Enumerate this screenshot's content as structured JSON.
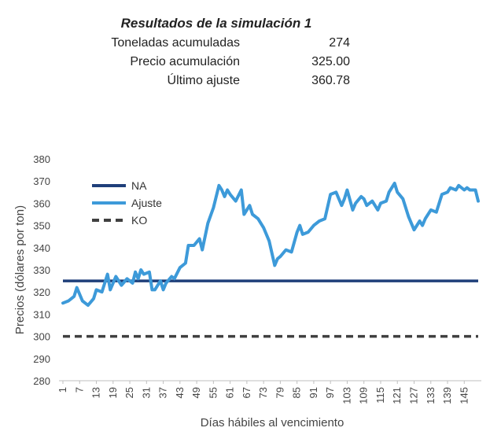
{
  "summary": {
    "title": "Resultados de la simulación 1",
    "rows": [
      {
        "label": "Toneladas acumuladas",
        "value": "274"
      },
      {
        "label": "Precio acumulación",
        "value": "325.00"
      },
      {
        "label": "Último ajuste",
        "value": "360.78"
      }
    ]
  },
  "chart_data": {
    "type": "line",
    "title": "",
    "xlabel": "Días hábiles al vencimiento",
    "ylabel": "Precios (dólares por ton)",
    "ylim": [
      280,
      380
    ],
    "yticks": [
      280,
      290,
      300,
      310,
      320,
      330,
      340,
      350,
      360,
      370,
      380
    ],
    "xticks": [
      1,
      7,
      13,
      19,
      25,
      31,
      37,
      43,
      49,
      55,
      61,
      67,
      73,
      79,
      85,
      91,
      97,
      103,
      109,
      115,
      121,
      127,
      133,
      139,
      145
    ],
    "xlim": [
      1,
      150
    ],
    "grid": false,
    "legend_position": "top-left",
    "colors": {
      "NA": "#1f3f7a",
      "Ajuste": "#3d9ad9",
      "KO": "#404040"
    },
    "series": [
      {
        "name": "NA",
        "style": "solid",
        "values": [
          325,
          325
        ]
      },
      {
        "name": "Ajuste",
        "style": "solid",
        "x": [
          1,
          3,
          5,
          6,
          8,
          10,
          12,
          13,
          15,
          17,
          18,
          20,
          22,
          24,
          26,
          27,
          28,
          29,
          30,
          32,
          33,
          34,
          36,
          37,
          38,
          40,
          41,
          43,
          45,
          46,
          48,
          50,
          51,
          53,
          55,
          57,
          58,
          59,
          60,
          61,
          63,
          65,
          66,
          68,
          69,
          71,
          73,
          75,
          77,
          78,
          79,
          81,
          83,
          85,
          86,
          87,
          89,
          91,
          93,
          95,
          97,
          99,
          101,
          102,
          103,
          105,
          106,
          108,
          109,
          110,
          112,
          114,
          115,
          117,
          118,
          120,
          121,
          123,
          125,
          127,
          129,
          130,
          131,
          133,
          135,
          137,
          139,
          140,
          142,
          143,
          145,
          146,
          147,
          149,
          150
        ],
        "values": [
          315,
          316,
          318,
          322,
          316,
          314,
          317,
          321,
          320,
          328,
          321,
          327,
          323,
          326,
          324,
          329,
          326,
          330,
          328,
          329,
          321,
          321,
          325,
          321,
          324,
          327,
          326,
          331,
          333,
          341,
          341,
          344,
          339,
          351,
          358,
          368,
          366,
          363,
          366,
          364,
          361,
          366,
          355,
          359,
          355,
          353,
          349,
          343,
          332,
          335,
          336,
          339,
          338,
          347,
          350,
          346,
          347,
          350,
          352,
          353,
          364,
          365,
          359,
          362,
          366,
          357,
          360,
          363,
          362,
          359,
          361,
          357,
          360,
          361,
          365,
          369,
          365,
          362,
          354,
          348,
          352,
          350,
          353,
          357,
          356,
          364,
          365,
          367,
          366,
          368,
          366,
          367,
          366,
          366,
          361
        ]
      },
      {
        "name": "KO",
        "style": "dashed",
        "values": [
          300,
          300
        ]
      }
    ]
  }
}
